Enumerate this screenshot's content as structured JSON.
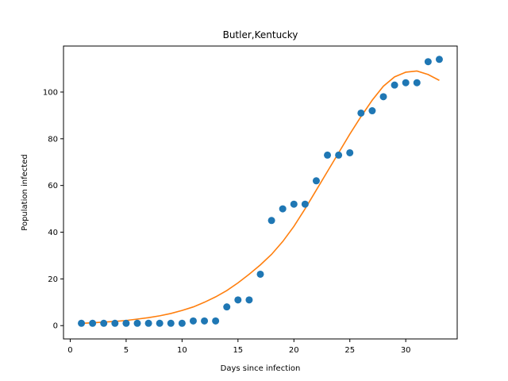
{
  "chart_data": {
    "type": "scatter",
    "title": "Butler,Kentucky",
    "xlabel": "Days since infection",
    "ylabel": "Population infected",
    "xlim": [
      -0.6,
      34.6
    ],
    "ylim": [
      -5.7,
      119.7
    ],
    "xticks": [
      0,
      5,
      10,
      15,
      20,
      25,
      30
    ],
    "yticks": [
      0,
      20,
      40,
      60,
      80,
      100
    ],
    "grid": false,
    "colors": {
      "points": "#1f77b4",
      "fit": "#ff7f0e"
    },
    "series": [
      {
        "kind": "scatter",
        "x": [
          1,
          2,
          3,
          4,
          5,
          6,
          7,
          8,
          9,
          10,
          11,
          12,
          13,
          14,
          15,
          16,
          17,
          18,
          19,
          20,
          21,
          22,
          23,
          24,
          25,
          26,
          27,
          28,
          29,
          30,
          31,
          32,
          33
        ],
        "y": [
          1,
          1,
          1,
          1,
          1,
          1,
          1,
          1,
          1,
          1,
          2,
          2,
          2,
          8,
          11,
          11,
          22,
          45,
          50,
          52,
          52,
          62,
          73,
          73,
          74,
          91,
          92,
          98,
          103,
          104,
          104,
          113,
          114
        ]
      },
      {
        "kind": "line",
        "x": [
          1,
          2,
          3,
          4,
          5,
          6,
          7,
          8,
          9,
          10,
          11,
          12,
          13,
          14,
          15,
          16,
          17,
          18,
          19,
          20,
          21,
          22,
          23,
          24,
          25,
          26,
          27,
          28,
          29,
          30,
          31,
          32,
          33
        ],
        "y": [
          1.0,
          1.2,
          1.5,
          1.8,
          2.2,
          2.8,
          3.4,
          4.2,
          5.2,
          6.5,
          8.0,
          10.0,
          12.3,
          15.0,
          18.3,
          22.0,
          26.0,
          30.5,
          36.0,
          42.5,
          50.0,
          58.0,
          66.0,
          74.0,
          82.0,
          89.5,
          96.5,
          102.5,
          106.5,
          108.5,
          109.0,
          107.5,
          105.0
        ]
      }
    ]
  }
}
